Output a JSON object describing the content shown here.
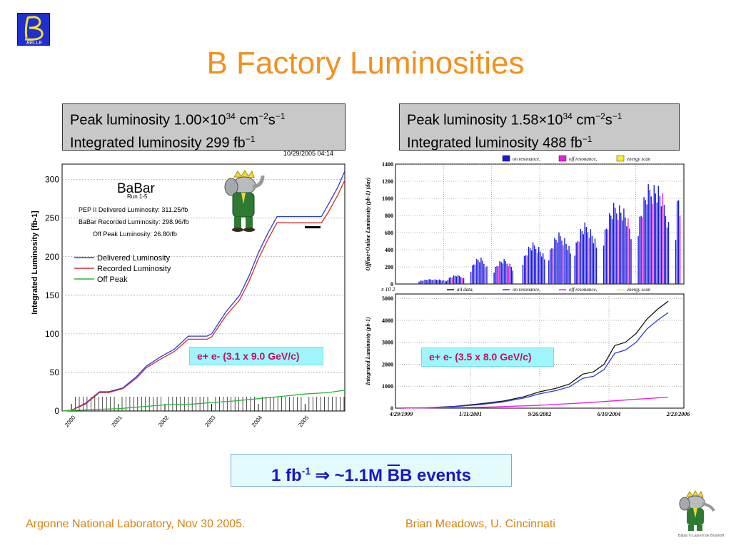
{
  "slide": {
    "title": "B Factory Luminosities",
    "footer_left": "Argonne National Laboratory, Nov 30 2005.",
    "footer_right": "Brian Meadows, U. Cincinnati",
    "logo_text": "BELLE",
    "bb_prefix": "1 fb",
    "bb_exp": "-1",
    "bb_arrow": "⇒",
    "bb_count": "~1.1M ",
    "bb_bbar": "B",
    "bb_b": "B",
    "bb_suffix": " events",
    "small_caption": "Babar © Laurent de Brunhoff"
  },
  "babar_box": {
    "peak_prefix": "Peak luminosity 1.00",
    "peak_times": "×",
    "peak_ten": "10",
    "peak_exp": "34",
    "peak_unit_cm": " cm",
    "peak_unit_cm_exp": "−2",
    "peak_unit_s": "s",
    "peak_unit_s_exp": "−1",
    "int_prefix": "Integrated luminosity 299 fb",
    "int_exp": "−1"
  },
  "belle_box": {
    "peak_prefix": "Peak luminosity 1.58",
    "peak_times": "×",
    "peak_ten": "10",
    "peak_exp": "34",
    "peak_unit_cm": " cm",
    "peak_unit_cm_exp": "−2",
    "peak_unit_s": "s",
    "peak_unit_s_exp": "−1",
    "int_prefix": "Integrated luminosity 488 fb",
    "int_exp": "−1"
  },
  "energy": {
    "left": "e+ e-  (3.1 x 9.0 GeV/c)",
    "right": "e+ e-  (3.5 x 8.0 GeV/c)"
  },
  "chart_data": [
    {
      "type": "line",
      "title": "BaBar",
      "subtitle": "Run 1-5",
      "timestamp": "10/29/2005 04:14",
      "ylabel": "Integrated Luminosity [fb-1]",
      "xlabel": "",
      "x_ticks": [
        "2000",
        "2001",
        "2002",
        "2003",
        "2004",
        "2005"
      ],
      "y_ticks": [
        "0",
        "50",
        "100",
        "150",
        "200",
        "250",
        "300"
      ],
      "ylim": [
        0,
        320
      ],
      "xlim": [
        1999.8,
        2005.85
      ],
      "grid": true,
      "annotations": [
        "PEP II Delivered Luminosity: 311.25/fb",
        "BaBar Recorded Luminosity: 298.96/fb",
        "Off Peak Luminosity: 26.80/fb"
      ],
      "legend_position": "middle-left",
      "series": [
        {
          "name": "Delivered Luminosity",
          "color": "#2b3bd6",
          "x": [
            1999.8,
            2000.0,
            2000.3,
            2000.6,
            2000.8,
            2001.1,
            2001.4,
            2001.6,
            2001.9,
            2002.2,
            2002.5,
            2002.7,
            2002.9,
            2003.0,
            2003.3,
            2003.6,
            2003.8,
            2004.0,
            2004.2,
            2004.4,
            2004.6,
            2005.0,
            2005.35,
            2005.5,
            2005.7,
            2005.85
          ],
          "y": [
            0,
            1,
            10,
            25,
            25,
            30,
            45,
            58,
            70,
            80,
            97,
            97,
            97,
            100,
            128,
            150,
            175,
            205,
            230,
            252,
            252,
            252,
            252,
            268,
            290,
            311
          ]
        },
        {
          "name": "Recorded Luminosity",
          "color": "#d62b2b",
          "x": [
            1999.8,
            2000.0,
            2000.3,
            2000.6,
            2000.8,
            2001.1,
            2001.4,
            2001.6,
            2001.9,
            2002.2,
            2002.5,
            2002.7,
            2002.9,
            2003.0,
            2003.3,
            2003.6,
            2003.8,
            2004.0,
            2004.2,
            2004.4,
            2004.6,
            2005.0,
            2005.35,
            2005.5,
            2005.7,
            2005.85
          ],
          "y": [
            0,
            1,
            9,
            24,
            24,
            29,
            43,
            56,
            67,
            77,
            93,
            93,
            93,
            96,
            123,
            144,
            168,
            197,
            222,
            244,
            244,
            244,
            244,
            258,
            280,
            299
          ]
        },
        {
          "name": "Off Peak",
          "color": "#2ab53a",
          "x": [
            1999.8,
            2000.5,
            2001.0,
            2001.6,
            2002.0,
            2002.6,
            2003.0,
            2003.5,
            2004.0,
            2004.5,
            2005.0,
            2005.5,
            2005.85
          ],
          "y": [
            0,
            2,
            3,
            6,
            8,
            9,
            11,
            13,
            16,
            19,
            22,
            24,
            27
          ]
        }
      ]
    },
    {
      "type": "bar",
      "ylabel": "Offline+Online Luminosity (pb-1) (day)",
      "y_ticks": [
        "0",
        "200",
        "400",
        "600",
        "800",
        "1000",
        "1200",
        "1400"
      ],
      "ylim": [
        0,
        1400
      ],
      "legend": [
        "on resonance,",
        "off resonance,",
        "energy scan"
      ],
      "legend_colors": [
        "#1a1adb",
        "#e81ee0",
        "#f5ef2c"
      ],
      "legend_position": "top",
      "segments": [
        {
          "start": 0.08,
          "end": 0.18,
          "peak": 60
        },
        {
          "start": 0.18,
          "end": 0.24,
          "peak": 110
        },
        {
          "start": 0.26,
          "end": 0.32,
          "peak": 320
        },
        {
          "start": 0.34,
          "end": 0.41,
          "peak": 300
        },
        {
          "start": 0.44,
          "end": 0.52,
          "peak": 500
        },
        {
          "start": 0.53,
          "end": 0.61,
          "peak": 620
        },
        {
          "start": 0.62,
          "end": 0.7,
          "peak": 740
        },
        {
          "start": 0.72,
          "end": 0.82,
          "peak": 1000
        },
        {
          "start": 0.84,
          "end": 0.95,
          "peak": 1250
        },
        {
          "start": 0.97,
          "end": 0.99,
          "peak": 1150
        }
      ]
    },
    {
      "type": "line",
      "ylabel": "Integrated Luminosity (pb-1)",
      "y_scale_note": "x 10 2",
      "y_ticks": [
        "0",
        "1000",
        "2000",
        "3000",
        "4000",
        "5000"
      ],
      "ylim": [
        0,
        5200
      ],
      "x_ticks": [
        "4/29/1999",
        "1/11/2001",
        "9/26/2002",
        "6/10/2004",
        "2/23/2006"
      ],
      "legend": [
        "all data,",
        "on resonance,",
        "off resonance,",
        "energy scan"
      ],
      "legend_position": "top",
      "series": [
        {
          "name": "all data,",
          "color": "#111111",
          "x": [
            0.0,
            0.1,
            0.2,
            0.3,
            0.38,
            0.46,
            0.52,
            0.58,
            0.63,
            0.68,
            0.72,
            0.76,
            0.8,
            0.84,
            0.88,
            0.92,
            0.96,
            1.0
          ],
          "y": [
            0,
            20,
            80,
            200,
            320,
            520,
            750,
            900,
            1100,
            1550,
            1650,
            2000,
            2850,
            3000,
            3400,
            4050,
            4500,
            4870
          ]
        },
        {
          "name": "on resonance,",
          "color": "#2b3bd6",
          "x": [
            0.0,
            0.1,
            0.2,
            0.3,
            0.38,
            0.46,
            0.52,
            0.58,
            0.63,
            0.68,
            0.72,
            0.76,
            0.8,
            0.84,
            0.88,
            0.92,
            0.96,
            1.0
          ],
          "y": [
            0,
            15,
            70,
            170,
            280,
            460,
            660,
            800,
            970,
            1360,
            1450,
            1760,
            2500,
            2650,
            3000,
            3600,
            4000,
            4350
          ]
        },
        {
          "name": "off resonance,",
          "color": "#e81ee0",
          "x": [
            0.0,
            0.3,
            0.5,
            0.7,
            0.85,
            1.0
          ],
          "y": [
            0,
            40,
            120,
            250,
            380,
            500
          ]
        }
      ]
    }
  ]
}
